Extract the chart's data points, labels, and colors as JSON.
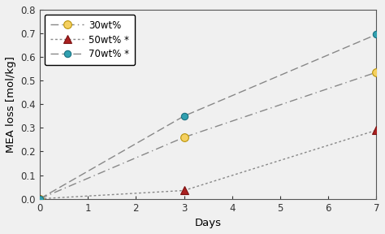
{
  "series": [
    {
      "label": "30wt%",
      "x": [
        0,
        3,
        7
      ],
      "y": [
        0,
        0.26,
        0.535
      ],
      "line_color": "#888888",
      "marker": "o",
      "linestyle": "dashdot",
      "markersize": 7,
      "markerfacecolor": "#f5d060",
      "markeredgecolor": "#b8930a",
      "zorder": 3
    },
    {
      "label": "50wt% *",
      "x": [
        0,
        3,
        7
      ],
      "y": [
        0,
        0.035,
        0.29
      ],
      "line_color": "#888888",
      "marker": "^",
      "linestyle": "dotted",
      "markersize": 7,
      "markerfacecolor": "#aa2020",
      "markeredgecolor": "#7a1010",
      "zorder": 3
    },
    {
      "label": "70wt% *",
      "x": [
        0,
        3,
        7
      ],
      "y": [
        0,
        0.35,
        0.695
      ],
      "line_color": "#888888",
      "marker": "o",
      "linestyle": "dashed",
      "markersize": 6,
      "markerfacecolor": "#30a0b0",
      "markeredgecolor": "#1a7080",
      "zorder": 3
    }
  ],
  "xlabel": "Days",
  "ylabel": "MEA loss [mol/kg]",
  "xlim": [
    0,
    7
  ],
  "ylim": [
    0,
    0.8
  ],
  "xticks": [
    0,
    1,
    2,
    3,
    4,
    5,
    6,
    7
  ],
  "yticks": [
    0.0,
    0.1,
    0.2,
    0.3,
    0.4,
    0.5,
    0.6,
    0.7,
    0.8
  ],
  "background_color": "#f0f0f0",
  "legend_loc": "upper left",
  "font_size": 8.5,
  "label_font_size": 9.5,
  "linewidth": 1.0
}
